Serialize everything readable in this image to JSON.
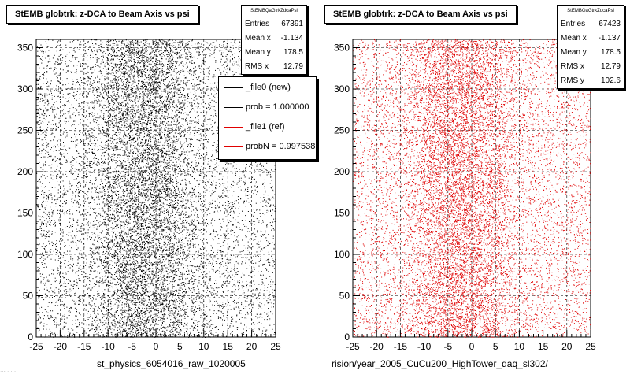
{
  "colors": {
    "left_series": "#000000",
    "right_series": "#e00000",
    "frame": "#000000"
  },
  "footer_fragment": "··· · ····",
  "left_panel": {
    "title": "StEMB globtrk: z-DCA to Beam Axis vs psi",
    "x_axis_title": "st_physics_6054016_raw_1020005",
    "stats": {
      "header": "StEMBQaGtrkZdcaPsi",
      "rows": [
        {
          "label": "Entries",
          "value": "67391"
        },
        {
          "label": "Mean x",
          "value": "-1.134"
        },
        {
          "label": "Mean y",
          "value": "178.5"
        },
        {
          "label": "RMS x",
          "value": "12.79"
        }
      ]
    },
    "legend": [
      {
        "label": "_file0 (new)",
        "color": "#000000"
      },
      {
        "label": "prob = 1.000000",
        "color": "#000000"
      },
      {
        "label": "_file1 (ref)",
        "color": "#e00000"
      },
      {
        "label": "probN = 0.997538",
        "color": "#e00000"
      }
    ]
  },
  "right_panel": {
    "title": "StEMB globtrk: z-DCA to Beam Axis vs psi",
    "x_axis_title": "rision/year_2005_CuCu200_HighTower_daq_sl302/",
    "stats": {
      "header": "StEMBQaGtrkZdcaPsi",
      "rows": [
        {
          "label": "Entries",
          "value": "67423"
        },
        {
          "label": "Mean x",
          "value": "-1.137"
        },
        {
          "label": "Mean y",
          "value": "178.5"
        },
        {
          "label": "RMS x",
          "value": "12.79"
        },
        {
          "label": "RMS y",
          "value": "102.6"
        }
      ]
    }
  },
  "chart_data": [
    {
      "type": "scatter",
      "title": "StEMB globtrk: z-DCA to Beam Axis vs psi",
      "xlabel": "st_physics_6054016_raw_1020005",
      "ylabel": "",
      "xlim": [
        -25,
        25
      ],
      "ylim": [
        0,
        360
      ],
      "x_ticks": [
        -25,
        -20,
        -15,
        -10,
        -5,
        0,
        5,
        10,
        15,
        20,
        25
      ],
      "y_ticks": [
        0,
        50,
        100,
        150,
        200,
        250,
        300,
        350
      ],
      "grid": true,
      "point_color": "#000000",
      "entries": 67391,
      "mean_x": -1.134,
      "mean_y": 178.5,
      "rms_x": 12.79,
      "y_distribution": "uniform",
      "x_density_peaks": [
        -6,
        1
      ]
    },
    {
      "type": "scatter",
      "title": "StEMB globtrk: z-DCA to Beam Axis vs psi",
      "xlabel": "rision/year_2005_CuCu200_HighTower_daq_sl302/",
      "ylabel": "",
      "xlim": [
        -25,
        25
      ],
      "ylim": [
        0,
        360
      ],
      "x_ticks": [
        -25,
        -20,
        -15,
        -10,
        -5,
        0,
        5,
        10,
        15,
        20,
        25
      ],
      "y_ticks": [
        0,
        50,
        100,
        150,
        200,
        250,
        300,
        350
      ],
      "grid": true,
      "point_color": "#e00000",
      "entries": 67423,
      "mean_x": -1.137,
      "mean_y": 178.5,
      "rms_x": 12.79,
      "rms_y": 102.6,
      "y_distribution": "uniform",
      "x_density_peaks": [
        -6,
        1
      ]
    }
  ]
}
